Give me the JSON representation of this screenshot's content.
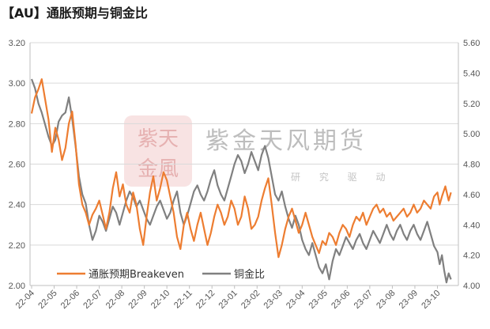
{
  "title": "【AU】通胀预期与铜金比",
  "watermark": {
    "name": "紫金天风期货",
    "tagline": "研 究 驱 动",
    "logo_text": "紫天金風"
  },
  "chart_data": {
    "type": "line",
    "categories": [
      "22-04",
      "22-05",
      "22-06",
      "22-07",
      "22-08",
      "22-09",
      "22-10",
      "22-11",
      "22-12",
      "23-01",
      "23-02",
      "23-03",
      "23-04",
      "23-05",
      "23-06",
      "23-07",
      "23-08",
      "23-09",
      "23-10"
    ],
    "y_left": {
      "ylim": [
        2.0,
        3.2
      ],
      "ticks": [
        "2.00",
        "2.20",
        "2.40",
        "2.60",
        "2.80",
        "3.00",
        "3.20"
      ]
    },
    "y_right": {
      "ylim": [
        4.0,
        5.6
      ],
      "ticks": [
        "4.00",
        "4.20",
        "4.40",
        "4.60",
        "4.80",
        "5.00",
        "5.20",
        "5.40",
        "5.60"
      ]
    },
    "grid": true,
    "legend_position": "bottom-left",
    "series": [
      {
        "name": "通胀预期Breakeven",
        "axis": "left",
        "color": "#ED7D31",
        "values": [
          [
            0.0,
            2.85
          ],
          [
            0.15,
            2.93
          ],
          [
            0.3,
            2.97
          ],
          [
            0.45,
            3.02
          ],
          [
            0.6,
            2.92
          ],
          [
            0.75,
            2.82
          ],
          [
            0.9,
            2.66
          ],
          [
            1.05,
            2.78
          ],
          [
            1.2,
            2.72
          ],
          [
            1.35,
            2.62
          ],
          [
            1.5,
            2.68
          ],
          [
            1.65,
            2.8
          ],
          [
            1.8,
            2.86
          ],
          [
            1.95,
            2.7
          ],
          [
            2.1,
            2.5
          ],
          [
            2.25,
            2.4
          ],
          [
            2.4,
            2.36
          ],
          [
            2.55,
            2.3
          ],
          [
            2.7,
            2.35
          ],
          [
            2.85,
            2.38
          ],
          [
            3.0,
            2.42
          ],
          [
            3.15,
            2.35
          ],
          [
            3.3,
            2.28
          ],
          [
            3.45,
            2.36
          ],
          [
            3.6,
            2.48
          ],
          [
            3.75,
            2.56
          ],
          [
            3.9,
            2.44
          ],
          [
            4.05,
            2.5
          ],
          [
            4.2,
            2.4
          ],
          [
            4.35,
            2.36
          ],
          [
            4.5,
            2.46
          ],
          [
            4.65,
            2.4
          ],
          [
            4.8,
            2.28
          ],
          [
            4.95,
            2.2
          ],
          [
            5.1,
            2.34
          ],
          [
            5.25,
            2.46
          ],
          [
            5.4,
            2.54
          ],
          [
            5.55,
            2.42
          ],
          [
            5.7,
            2.48
          ],
          [
            5.85,
            2.56
          ],
          [
            6.0,
            2.52
          ],
          [
            6.15,
            2.44
          ],
          [
            6.3,
            2.36
          ],
          [
            6.45,
            2.24
          ],
          [
            6.6,
            2.18
          ],
          [
            6.75,
            2.3
          ],
          [
            6.9,
            2.36
          ],
          [
            7.05,
            2.28
          ],
          [
            7.2,
            2.22
          ],
          [
            7.35,
            2.3
          ],
          [
            7.5,
            2.36
          ],
          [
            7.65,
            2.28
          ],
          [
            7.8,
            2.2
          ],
          [
            7.95,
            2.26
          ],
          [
            8.1,
            2.34
          ],
          [
            8.25,
            2.4
          ],
          [
            8.4,
            2.36
          ],
          [
            8.55,
            2.3
          ],
          [
            8.7,
            2.34
          ],
          [
            8.85,
            2.42
          ],
          [
            9.0,
            2.38
          ],
          [
            9.15,
            2.3
          ],
          [
            9.3,
            2.34
          ],
          [
            9.45,
            2.44
          ],
          [
            9.6,
            2.38
          ],
          [
            9.75,
            2.28
          ],
          [
            9.9,
            2.3
          ],
          [
            10.05,
            2.34
          ],
          [
            10.2,
            2.42
          ],
          [
            10.35,
            2.48
          ],
          [
            10.5,
            2.53
          ],
          [
            10.65,
            2.4
          ],
          [
            10.8,
            2.26
          ],
          [
            10.95,
            2.14
          ],
          [
            11.1,
            2.2
          ],
          [
            11.25,
            2.28
          ],
          [
            11.4,
            2.34
          ],
          [
            11.55,
            2.38
          ],
          [
            11.7,
            2.32
          ],
          [
            11.85,
            2.26
          ],
          [
            12.0,
            2.3
          ],
          [
            12.15,
            2.36
          ],
          [
            12.3,
            2.3
          ],
          [
            12.45,
            2.24
          ],
          [
            12.6,
            2.2
          ],
          [
            12.75,
            2.16
          ],
          [
            12.9,
            2.22
          ],
          [
            13.05,
            2.2
          ],
          [
            13.2,
            2.26
          ],
          [
            13.35,
            2.24
          ],
          [
            13.5,
            2.2
          ],
          [
            13.65,
            2.26
          ],
          [
            13.8,
            2.3
          ],
          [
            13.95,
            2.28
          ],
          [
            14.1,
            2.24
          ],
          [
            14.25,
            2.3
          ],
          [
            14.4,
            2.34
          ],
          [
            14.55,
            2.32
          ],
          [
            14.7,
            2.36
          ],
          [
            14.85,
            2.3
          ],
          [
            15.0,
            2.34
          ],
          [
            15.15,
            2.38
          ],
          [
            15.3,
            2.4
          ],
          [
            15.45,
            2.36
          ],
          [
            15.6,
            2.38
          ],
          [
            15.75,
            2.34
          ],
          [
            15.9,
            2.36
          ],
          [
            16.05,
            2.32
          ],
          [
            16.2,
            2.34
          ],
          [
            16.35,
            2.36
          ],
          [
            16.5,
            2.38
          ],
          [
            16.65,
            2.34
          ],
          [
            16.8,
            2.36
          ],
          [
            16.95,
            2.4
          ],
          [
            17.1,
            2.36
          ],
          [
            17.25,
            2.38
          ],
          [
            17.4,
            2.42
          ],
          [
            17.55,
            2.4
          ],
          [
            17.7,
            2.38
          ],
          [
            17.85,
            2.44
          ],
          [
            18.0,
            2.46
          ],
          [
            18.1,
            2.4
          ],
          [
            18.2,
            2.44
          ],
          [
            18.35,
            2.49
          ],
          [
            18.5,
            2.42
          ],
          [
            18.6,
            2.46
          ]
        ]
      },
      {
        "name": "铜金比",
        "axis": "right",
        "color": "#808080",
        "values": [
          [
            0.0,
            5.36
          ],
          [
            0.15,
            5.3
          ],
          [
            0.3,
            5.2
          ],
          [
            0.45,
            5.14
          ],
          [
            0.6,
            5.06
          ],
          [
            0.75,
            4.98
          ],
          [
            0.9,
            4.92
          ],
          [
            1.05,
            4.96
          ],
          [
            1.2,
            5.08
          ],
          [
            1.35,
            5.12
          ],
          [
            1.5,
            5.14
          ],
          [
            1.65,
            5.24
          ],
          [
            1.8,
            5.1
          ],
          [
            1.95,
            4.92
          ],
          [
            2.1,
            4.72
          ],
          [
            2.25,
            4.6
          ],
          [
            2.4,
            4.54
          ],
          [
            2.55,
            4.4
          ],
          [
            2.7,
            4.3
          ],
          [
            2.85,
            4.36
          ],
          [
            3.0,
            4.46
          ],
          [
            3.15,
            4.42
          ],
          [
            3.3,
            4.36
          ],
          [
            3.45,
            4.44
          ],
          [
            3.6,
            4.52
          ],
          [
            3.75,
            4.48
          ],
          [
            3.9,
            4.4
          ],
          [
            4.05,
            4.48
          ],
          [
            4.2,
            4.56
          ],
          [
            4.35,
            4.62
          ],
          [
            4.5,
            4.58
          ],
          [
            4.65,
            4.52
          ],
          [
            4.8,
            4.56
          ],
          [
            4.95,
            4.5
          ],
          [
            5.1,
            4.44
          ],
          [
            5.25,
            4.4
          ],
          [
            5.4,
            4.46
          ],
          [
            5.55,
            4.52
          ],
          [
            5.7,
            4.56
          ],
          [
            5.85,
            4.5
          ],
          [
            6.0,
            4.44
          ],
          [
            6.15,
            4.48
          ],
          [
            6.3,
            4.56
          ],
          [
            6.45,
            4.62
          ],
          [
            6.6,
            4.48
          ],
          [
            6.75,
            4.4
          ],
          [
            6.9,
            4.46
          ],
          [
            7.05,
            4.54
          ],
          [
            7.2,
            4.62
          ],
          [
            7.35,
            4.66
          ],
          [
            7.5,
            4.6
          ],
          [
            7.65,
            4.56
          ],
          [
            7.8,
            4.62
          ],
          [
            7.95,
            4.7
          ],
          [
            8.1,
            4.76
          ],
          [
            8.25,
            4.66
          ],
          [
            8.4,
            4.6
          ],
          [
            8.55,
            4.56
          ],
          [
            8.7,
            4.64
          ],
          [
            8.85,
            4.72
          ],
          [
            9.0,
            4.8
          ],
          [
            9.15,
            4.86
          ],
          [
            9.3,
            4.82
          ],
          [
            9.45,
            4.74
          ],
          [
            9.6,
            4.8
          ],
          [
            9.75,
            4.88
          ],
          [
            9.9,
            4.82
          ],
          [
            10.05,
            4.76
          ],
          [
            10.2,
            4.86
          ],
          [
            10.35,
            4.92
          ],
          [
            10.5,
            4.84
          ],
          [
            10.65,
            4.72
          ],
          [
            10.8,
            4.6
          ],
          [
            10.95,
            4.56
          ],
          [
            11.1,
            4.62
          ],
          [
            11.25,
            4.52
          ],
          [
            11.4,
            4.44
          ],
          [
            11.55,
            4.38
          ],
          [
            11.7,
            4.46
          ],
          [
            11.85,
            4.4
          ],
          [
            12.0,
            4.3
          ],
          [
            12.15,
            4.24
          ],
          [
            12.3,
            4.2
          ],
          [
            12.45,
            4.28
          ],
          [
            12.6,
            4.2
          ],
          [
            12.75,
            4.12
          ],
          [
            12.9,
            4.08
          ],
          [
            13.05,
            4.14
          ],
          [
            13.2,
            4.04
          ],
          [
            13.35,
            4.16
          ],
          [
            13.5,
            4.24
          ],
          [
            13.65,
            4.2
          ],
          [
            13.8,
            4.26
          ],
          [
            13.95,
            4.32
          ],
          [
            14.1,
            4.28
          ],
          [
            14.25,
            4.24
          ],
          [
            14.4,
            4.3
          ],
          [
            14.55,
            4.34
          ],
          [
            14.7,
            4.28
          ],
          [
            14.85,
            4.24
          ],
          [
            15.0,
            4.3
          ],
          [
            15.15,
            4.36
          ],
          [
            15.3,
            4.32
          ],
          [
            15.45,
            4.28
          ],
          [
            15.6,
            4.34
          ],
          [
            15.75,
            4.4
          ],
          [
            15.9,
            4.34
          ],
          [
            16.05,
            4.3
          ],
          [
            16.2,
            4.36
          ],
          [
            16.35,
            4.4
          ],
          [
            16.5,
            4.34
          ],
          [
            16.65,
            4.3
          ],
          [
            16.8,
            4.36
          ],
          [
            16.95,
            4.4
          ],
          [
            17.1,
            4.34
          ],
          [
            17.25,
            4.3
          ],
          [
            17.4,
            4.36
          ],
          [
            17.55,
            4.42
          ],
          [
            17.7,
            4.34
          ],
          [
            17.85,
            4.26
          ],
          [
            18.0,
            4.22
          ],
          [
            18.1,
            4.14
          ],
          [
            18.2,
            4.2
          ],
          [
            18.3,
            4.1
          ],
          [
            18.4,
            4.02
          ],
          [
            18.5,
            4.08
          ],
          [
            18.6,
            4.04
          ]
        ]
      }
    ]
  }
}
